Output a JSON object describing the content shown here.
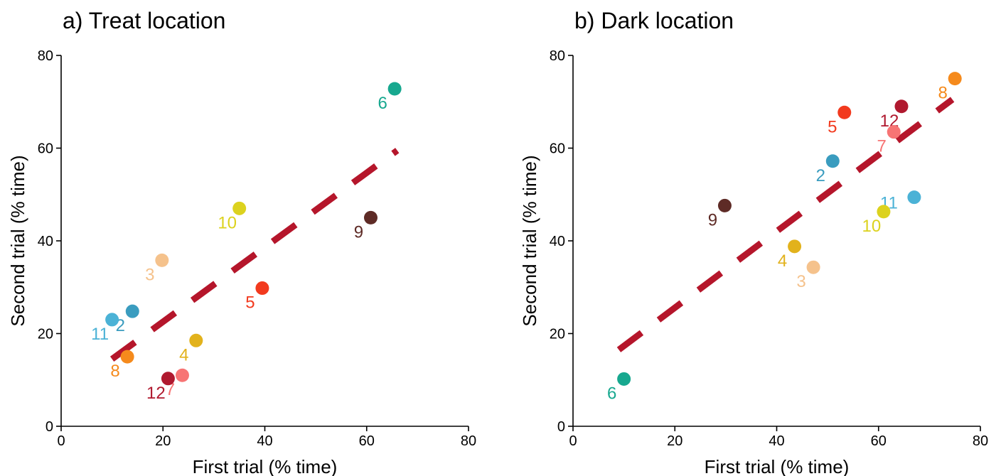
{
  "chart_data": [
    {
      "type": "scatter",
      "title": "a) Treat location",
      "xlabel": "First trial (% time)",
      "ylabel": "Second trial (% time)",
      "xlim": [
        0,
        80
      ],
      "ylim": [
        0,
        80
      ],
      "xticks": [
        0,
        20,
        40,
        60,
        80
      ],
      "yticks": [
        0,
        20,
        40,
        60,
        80
      ],
      "grid": false,
      "points": [
        {
          "label": "6",
          "x": 65.5,
          "y": 72.8,
          "color": "#17a88f",
          "label_pos": "below-left"
        },
        {
          "label": "10",
          "x": 35.0,
          "y": 47.0,
          "color": "#dcd21e",
          "label_pos": "below-left"
        },
        {
          "label": "9",
          "x": 60.8,
          "y": 45.0,
          "color": "#5e2b26",
          "label_pos": "below-left"
        },
        {
          "label": "3",
          "x": 19.8,
          "y": 35.8,
          "color": "#f5c28c",
          "label_pos": "below-left"
        },
        {
          "label": "5",
          "x": 39.5,
          "y": 29.8,
          "color": "#f23a1e",
          "label_pos": "below-left"
        },
        {
          "label": "2",
          "x": 14.0,
          "y": 24.8,
          "color": "#3a9cbf",
          "label_pos": "below-left"
        },
        {
          "label": "11",
          "x": 10.0,
          "y": 23.0,
          "color": "#4bb2d6",
          "label_pos": "below-left"
        },
        {
          "label": "4",
          "x": 26.5,
          "y": 18.5,
          "color": "#e2b21c",
          "label_pos": "below-left"
        },
        {
          "label": "8",
          "x": 13.0,
          "y": 15.0,
          "color": "#f58a1c",
          "label_pos": "below-left"
        },
        {
          "label": "7",
          "x": 23.8,
          "y": 11.0,
          "color": "#f77474",
          "label_pos": "below-left"
        },
        {
          "label": "12",
          "x": 21.0,
          "y": 10.3,
          "color": "#b0192f",
          "label_pos": "below-left"
        }
      ],
      "fit_line": {
        "x": [
          10,
          66
        ],
        "y": [
          14.5,
          59.5
        ],
        "color": "#b5162b",
        "style": "dashed"
      }
    },
    {
      "type": "scatter",
      "title": "b) Dark location",
      "xlabel": "First trial (% time)",
      "ylabel": "Second trial (% time)",
      "xlim": [
        0,
        80
      ],
      "ylim": [
        0,
        80
      ],
      "xticks": [
        0,
        20,
        40,
        60,
        80
      ],
      "yticks": [
        0,
        20,
        40,
        60,
        80
      ],
      "grid": false,
      "points": [
        {
          "label": "8",
          "x": 75.0,
          "y": 75.0,
          "color": "#f58a1c",
          "label_pos": "below-left"
        },
        {
          "label": "12",
          "x": 64.5,
          "y": 69.0,
          "color": "#b0192f",
          "label_pos": "below-left"
        },
        {
          "label": "5",
          "x": 53.3,
          "y": 67.7,
          "color": "#f23a1e",
          "label_pos": "below-left"
        },
        {
          "label": "7",
          "x": 63.0,
          "y": 63.5,
          "color": "#f77474",
          "label_pos": "below-left"
        },
        {
          "label": "2",
          "x": 51.0,
          "y": 57.2,
          "color": "#3a9cbf",
          "label_pos": "below-left"
        },
        {
          "label": "11",
          "x": 67.0,
          "y": 49.4,
          "color": "#4bb2d6",
          "label_pos": "left"
        },
        {
          "label": "9",
          "x": 29.8,
          "y": 47.6,
          "color": "#5e2b26",
          "label_pos": "below-left"
        },
        {
          "label": "10",
          "x": 61.0,
          "y": 46.3,
          "color": "#dcd21e",
          "label_pos": "below-left"
        },
        {
          "label": "4",
          "x": 43.5,
          "y": 38.8,
          "color": "#e2b21c",
          "label_pos": "below-left"
        },
        {
          "label": "3",
          "x": 47.2,
          "y": 34.3,
          "color": "#f5c28c",
          "label_pos": "below-left"
        },
        {
          "label": "6",
          "x": 10.0,
          "y": 10.2,
          "color": "#17a88f",
          "label_pos": "below-left"
        }
      ],
      "fit_line": {
        "x": [
          9,
          74.5
        ],
        "y": [
          16.5,
          70.5
        ],
        "color": "#b5162b",
        "style": "dashed"
      }
    }
  ]
}
